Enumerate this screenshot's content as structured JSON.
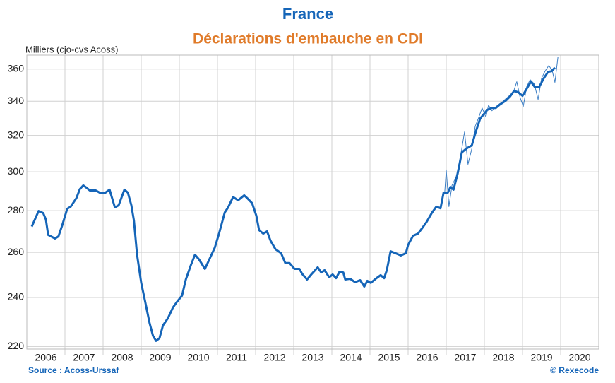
{
  "chart_data": {
    "type": "line",
    "title": "France",
    "subtitle": "Déclarations d'embauche en CDI",
    "y_label": "Milliers (cjo-cvs Acoss)",
    "source": "Source : Acoss-Urssaf",
    "credit": "© Rexecode",
    "ylog": true,
    "ylim": [
      219,
      369
    ],
    "yticks": [
      220,
      240,
      260,
      280,
      300,
      320,
      340,
      360
    ],
    "xlim": [
      2006,
      2021
    ],
    "xgrid": [
      2007,
      2008,
      2009,
      2010,
      2011,
      2012,
      2013,
      2014,
      2015,
      2016,
      2017,
      2018,
      2019,
      2020
    ],
    "xticks": [
      {
        "value": 2006.5,
        "label": "2006"
      },
      {
        "value": 2007.5,
        "label": "2007"
      },
      {
        "value": 2008.5,
        "label": "2008"
      },
      {
        "value": 2009.5,
        "label": "2009"
      },
      {
        "value": 2010.5,
        "label": "2010"
      },
      {
        "value": 2011.5,
        "label": "2011"
      },
      {
        "value": 2012.5,
        "label": "2012"
      },
      {
        "value": 2013.5,
        "label": "2013"
      },
      {
        "value": 2014.5,
        "label": "2014"
      },
      {
        "value": 2015.5,
        "label": "2015"
      },
      {
        "value": 2016.5,
        "label": "2016"
      },
      {
        "value": 2017.5,
        "label": "2017"
      },
      {
        "value": 2018.5,
        "label": "2018"
      },
      {
        "value": 2019.5,
        "label": "2019"
      },
      {
        "value": 2020.5,
        "label": "2020"
      }
    ],
    "grid": true,
    "series": [
      {
        "color": "#3a7dc4",
        "width": 1,
        "x": [
          2016.96,
          2017.0,
          2017.07,
          2017.15,
          2017.26,
          2017.37,
          2017.48,
          2017.57,
          2017.67,
          2017.76,
          2017.85,
          2017.94,
          2018.04,
          2018.11,
          2018.2,
          2018.31,
          2018.43,
          2018.54,
          2018.65,
          2018.76,
          2018.85,
          2018.94,
          2019.02,
          2019.11,
          2019.2,
          2019.31,
          2019.41,
          2019.5,
          2019.59,
          2019.69,
          2019.78,
          2019.85,
          2019.93
        ],
        "values": [
          289.1,
          301,
          282,
          292.8,
          297.3,
          307.8,
          322,
          304,
          312.5,
          325.2,
          330.2,
          336,
          330.6,
          337.7,
          334.3,
          336.9,
          338.6,
          341.1,
          343.3,
          345.4,
          352,
          342,
          336.9,
          348.9,
          353.3,
          350.7,
          341.1,
          354.2,
          358.6,
          362.3,
          358.9,
          351.6,
          367.8
        ]
      },
      {
        "color": "#1565b8",
        "width": 3,
        "x": [
          2006.13,
          2006.31,
          2006.43,
          2006.5,
          2006.56,
          2006.74,
          2006.83,
          2006.93,
          2007.06,
          2007.15,
          2007.3,
          2007.39,
          2007.48,
          2007.56,
          2007.65,
          2007.81,
          2007.91,
          2008.06,
          2008.17,
          2008.31,
          2008.41,
          2008.56,
          2008.65,
          2008.74,
          2008.81,
          2008.89,
          2009.0,
          2009.11,
          2009.22,
          2009.31,
          2009.39,
          2009.48,
          2009.57,
          2009.7,
          2009.83,
          2009.93,
          2010.07,
          2010.17,
          2010.3,
          2010.41,
          2010.52,
          2010.67,
          2010.8,
          2010.93,
          2011.04,
          2011.19,
          2011.28,
          2011.41,
          2011.54,
          2011.7,
          2011.78,
          2011.91,
          2012.02,
          2012.09,
          2012.2,
          2012.3,
          2012.39,
          2012.52,
          2012.67,
          2012.78,
          2012.89,
          2013.02,
          2013.15,
          2013.22,
          2013.35,
          2013.46,
          2013.63,
          2013.72,
          2013.81,
          2013.93,
          2014.02,
          2014.11,
          2014.2,
          2014.3,
          2014.35,
          2014.48,
          2014.61,
          2014.74,
          2014.85,
          2014.93,
          2015.02,
          2015.17,
          2015.28,
          2015.37,
          2015.44,
          2015.54,
          2015.67,
          2015.81,
          2015.94,
          2016.0,
          2016.13,
          2016.26,
          2016.37,
          2016.48,
          2016.63,
          2016.74,
          2016.85,
          2016.93,
          2017.04,
          2017.11,
          2017.19,
          2017.3,
          2017.41,
          2017.52,
          2017.67,
          2017.78,
          2017.89,
          2018.0,
          2018.07,
          2018.19,
          2018.3,
          2018.41,
          2018.56,
          2018.67,
          2018.78,
          2018.89,
          2019.0,
          2019.11,
          2019.22,
          2019.33,
          2019.44,
          2019.56,
          2019.67,
          2019.76,
          2019.85
        ],
        "values": [
          272.2,
          279.8,
          278.8,
          275.6,
          268.2,
          266.5,
          267.5,
          272.9,
          280.9,
          282,
          286.3,
          290.9,
          292.8,
          291.7,
          290.2,
          290.2,
          289.1,
          289.1,
          290.6,
          281.6,
          282.7,
          290.6,
          289.1,
          282.7,
          275,
          258.9,
          246.3,
          237.8,
          229.3,
          224.2,
          222.2,
          223.3,
          228.4,
          231.3,
          235.7,
          238,
          240.8,
          247.8,
          254.1,
          258.9,
          256.7,
          252.5,
          257.3,
          262.2,
          268.8,
          279.1,
          281.6,
          286.9,
          285.2,
          287.7,
          286.3,
          283.7,
          277.4,
          270.5,
          268.8,
          269.9,
          265.5,
          261.5,
          259.6,
          255.1,
          255.1,
          252.5,
          252.5,
          250.3,
          247.8,
          250,
          253.2,
          250.9,
          251.9,
          248.8,
          250,
          248.4,
          251.2,
          250.9,
          247.8,
          248.1,
          246.6,
          247.5,
          244.7,
          247.2,
          246.3,
          248.4,
          249.7,
          248.4,
          251.9,
          260.5,
          259.6,
          258.6,
          259.6,
          263.5,
          267.8,
          268.8,
          271.5,
          274.3,
          279.1,
          282,
          281.2,
          289.1,
          289.1,
          292,
          290.6,
          299.1,
          310.5,
          312.5,
          314.4,
          322.4,
          329.8,
          332.7,
          334.8,
          336,
          336,
          338.1,
          340.3,
          342.8,
          346.3,
          345.4,
          343.3,
          347.6,
          352,
          348.5,
          348.9,
          354.2,
          358.2,
          358.6,
          360.9
        ]
      }
    ]
  }
}
